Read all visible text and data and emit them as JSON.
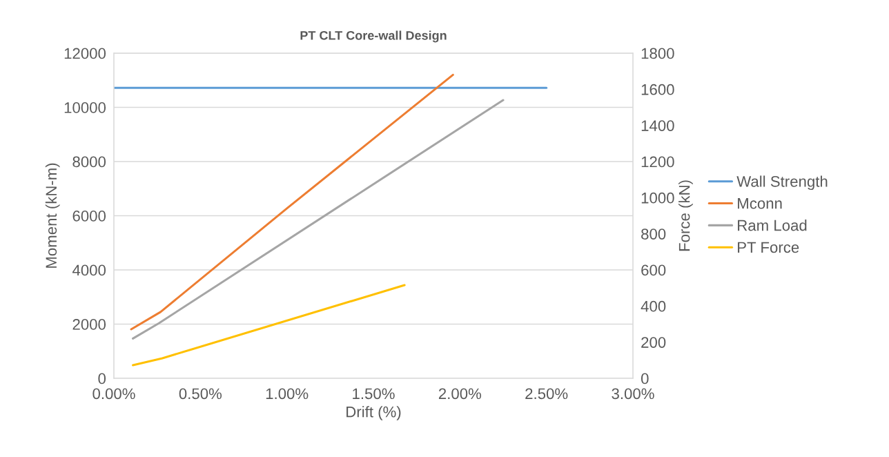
{
  "chart_data": {
    "type": "line",
    "title": "PT CLT Core-wall Design",
    "xlabel": "Drift (%)",
    "ylabel": "Moment (kN-m)",
    "y2label": "Force (kN)",
    "series": [
      {
        "name": "Wall Strength",
        "color": "#5b9bd5",
        "x": [
          0,
          2.5
        ],
        "values": [
          10720,
          10720
        ]
      },
      {
        "name": "Mconn",
        "color": "#ed7d31",
        "x": [
          0.1,
          0.27,
          1.0,
          1.96
        ],
        "values": [
          1810,
          2450,
          6270,
          11200
        ]
      },
      {
        "name": "Ram Load",
        "color": "#a5a5a5",
        "axis": "y2",
        "x": [
          0.11,
          0.26,
          2.25
        ],
        "values": [
          220,
          305,
          1540
        ]
      },
      {
        "name": "PT Force",
        "color": "#ffc000",
        "axis": "y2",
        "x": [
          0.11,
          0.28,
          1.68
        ],
        "values": [
          73,
          111,
          516
        ]
      }
    ],
    "xlim": [
      0,
      3
    ],
    "xticks": [
      {
        "value": 0,
        "label": "0.00%"
      },
      {
        "value": 0.5,
        "label": "0.50%"
      },
      {
        "value": 1,
        "label": "1.00%"
      },
      {
        "value": 1.5,
        "label": "1.50%"
      },
      {
        "value": 2,
        "label": "2.00%"
      },
      {
        "value": 2.5,
        "label": "2.50%"
      },
      {
        "value": 3,
        "label": "3.00%"
      }
    ],
    "ylim": [
      0,
      12000
    ],
    "yticks": [
      0,
      2000,
      4000,
      6000,
      8000,
      10000,
      12000
    ],
    "y2lim": [
      0,
      1800
    ],
    "y2ticks": [
      0,
      200,
      400,
      600,
      800,
      1000,
      1200,
      1400,
      1600,
      1800
    ],
    "grid": "y",
    "legend": "right",
    "marker": "none",
    "line_style": "solid"
  }
}
